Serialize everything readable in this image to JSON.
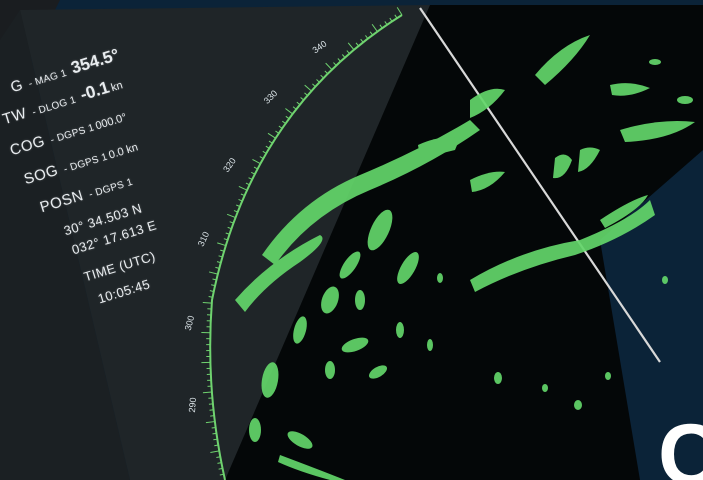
{
  "readout": {
    "hdg": {
      "label": "G",
      "source": "- MAG 1",
      "value": "354.5°"
    },
    "stw": {
      "label": "TW",
      "source": "- DLOG 1",
      "value": "-0.1",
      "unit": "kn"
    },
    "cog": {
      "label": "COG",
      "source": "- DGPS 1",
      "value": "000.0°"
    },
    "sog": {
      "label": "SOG",
      "source": "- DGPS 1",
      "value": "0.0 kn"
    },
    "posn": {
      "label": "POSN",
      "source": "- DGPS 1",
      "lat": "30° 34.503 N",
      "lon": "032° 17.613 E"
    },
    "time": {
      "label": "TIME (UTC)",
      "value": "10:05:45"
    }
  },
  "bearing_labels": [
    "340",
    "330",
    "320",
    "310",
    "300",
    "290"
  ],
  "corner_letter": "C",
  "colors": {
    "echo": "#63d66a",
    "range_ring": "#6fd36f",
    "heading_line": "#d8d8d8",
    "background": "#0b2338",
    "readout_panel": "#1c2226",
    "radar_screen": "#05080a"
  }
}
